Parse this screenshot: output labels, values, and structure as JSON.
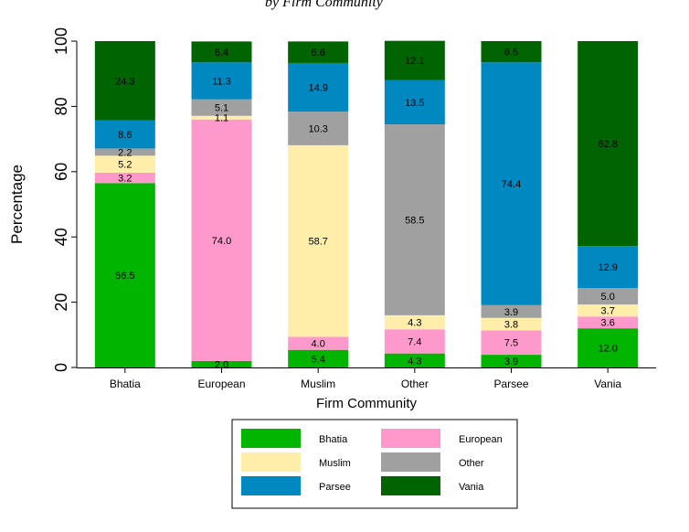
{
  "header": {
    "cropped_text": "by Firm Community"
  },
  "chart_data": {
    "type": "bar",
    "stacked": true,
    "categories": [
      "Bhatia",
      "European",
      "Muslim",
      "Other",
      "Parsee",
      "Vania"
    ],
    "xlabel": "Firm Community",
    "ylabel": "Percentage",
    "ylim": [
      0,
      100
    ],
    "yticks": [
      "0",
      "20",
      "40",
      "60",
      "80",
      "100"
    ],
    "grid": false,
    "legend_position": "bottom",
    "series": [
      {
        "name": "Bhatia",
        "color": "#00b400",
        "values": [
          56.5,
          2.0,
          5.4,
          4.3,
          3.9,
          12.0
        ],
        "labels": [
          "56.5",
          "2.0",
          "5.4",
          "4.3",
          "3.9",
          "12.0"
        ]
      },
      {
        "name": "European",
        "color": "#ff99cc",
        "values": [
          3.2,
          74.0,
          4.0,
          7.4,
          7.5,
          3.6
        ],
        "labels": [
          "3.2",
          "74.0",
          "4.0",
          "7.4",
          "7.5",
          "3.6"
        ]
      },
      {
        "name": "Muslim",
        "color": "#ffeeaa",
        "values": [
          5.2,
          1.1,
          58.7,
          4.3,
          3.8,
          3.7
        ],
        "labels": [
          "5.2",
          "1.1",
          "58.7",
          "4.3",
          "3.8",
          "3.7"
        ]
      },
      {
        "name": "Other",
        "color": "#a0a0a0",
        "values": [
          2.2,
          5.1,
          10.3,
          58.5,
          3.9,
          5.0
        ],
        "labels": [
          "2.2",
          "5.1",
          "10.3",
          "58.5",
          "3.9",
          "5.0"
        ]
      },
      {
        "name": "Parsee",
        "color": "#0088c0",
        "values": [
          8.6,
          11.3,
          14.9,
          13.5,
          74.4,
          12.9
        ],
        "labels": [
          "8.6",
          "11.3",
          "14.9",
          "13.5",
          "74.4",
          "12.9"
        ]
      },
      {
        "name": "Vania",
        "color": "#006400",
        "values": [
          24.3,
          6.4,
          6.6,
          12.1,
          6.5,
          62.8
        ],
        "labels": [
          "24.3",
          "6.4",
          "6.6",
          "12.1",
          "6.5",
          "62.8"
        ]
      }
    ]
  }
}
